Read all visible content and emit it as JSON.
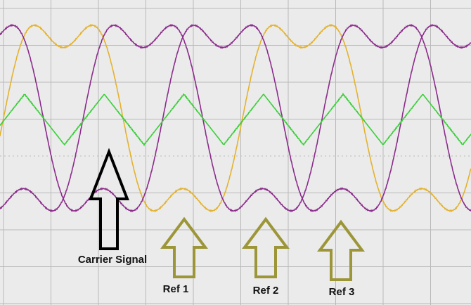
{
  "annotations": {
    "carrier": "Carrier Signal",
    "refs": [
      "Ref 1",
      "Ref 2",
      "Ref 3"
    ]
  }
}
